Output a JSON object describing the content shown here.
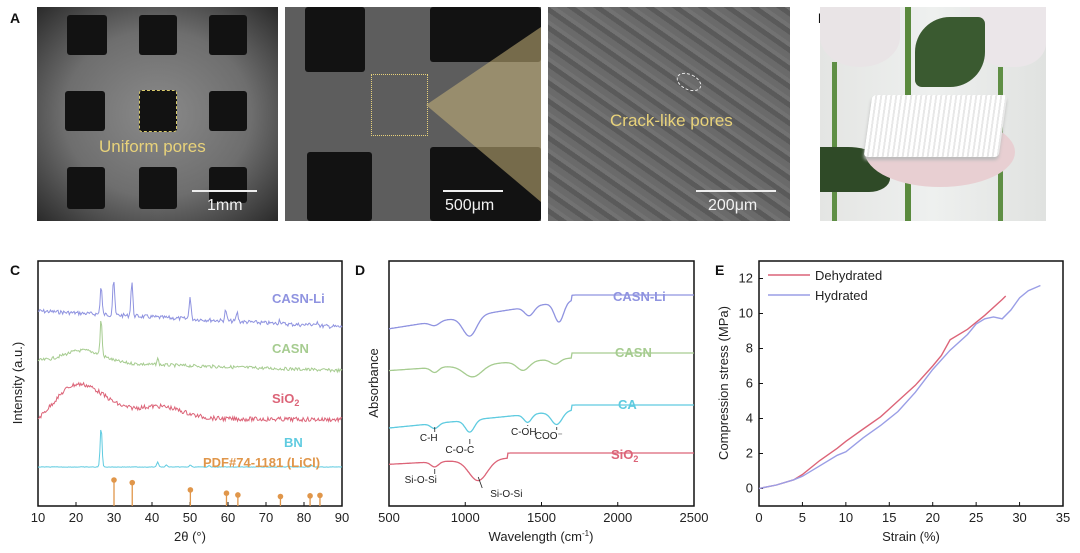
{
  "panels": {
    "a_label": "A",
    "b_label": "B",
    "c_label": "C",
    "d_label": "D",
    "e_label": "E"
  },
  "sem_images": [
    {
      "annotation": "Uniform pores",
      "scale": "1mm"
    },
    {
      "annotation": "",
      "scale": "500μm"
    },
    {
      "annotation": "Crack-like pores",
      "scale": "200μm"
    }
  ],
  "photo": {
    "description": "3D-printed white lattice scaffold resting on a pink flower"
  },
  "colors": {
    "blue": "#8f93e0",
    "green": "#a6cc90",
    "red": "#dc6478",
    "cyan": "#5fcbe0",
    "orange": "#e0964a"
  },
  "chart_data": [
    {
      "type": "line",
      "title": "",
      "xlabel": "2θ (°)",
      "ylabel": "Intensity (a.u.)",
      "xlim": [
        10,
        90
      ],
      "xticks": [
        "10",
        "20",
        "30",
        "40",
        "50",
        "60",
        "70",
        "80",
        "90"
      ],
      "series": [
        {
          "name": "CASN-Li",
          "peaks": [
            26.6,
            29.9,
            34.7,
            50.0,
            59.4,
            62.4,
            73.6,
            81.3,
            83.5
          ]
        },
        {
          "name": "CASN",
          "peaks": [
            26.6,
            41.5
          ]
        },
        {
          "name": "SiO2",
          "broad_humps": [
            21,
            42
          ]
        },
        {
          "name": "BN",
          "peaks": [
            26.6,
            41.5,
            43.8,
            50.1,
            55.0,
            75.9,
            82.0
          ]
        }
      ],
      "reference": {
        "name": "PDF#74-1181 (LiCl)",
        "x": [
          30.0,
          34.8,
          50.1,
          59.6,
          62.6,
          73.8,
          81.6,
          84.2
        ],
        "rel_intensity": [
          100,
          88,
          55,
          40,
          32,
          25,
          28,
          30
        ]
      }
    },
    {
      "type": "line",
      "title": "",
      "xlabel": "Wavelength (cm⁻¹)",
      "ylabel": "Absorbance",
      "xlim": [
        500,
        2500
      ],
      "xticks": [
        "500",
        "1000",
        "1500",
        "2000",
        "2500"
      ],
      "series": [
        {
          "name": "CASN-Li",
          "dips": [
            800,
            1030,
            1420,
            1615
          ]
        },
        {
          "name": "CASN",
          "dips": [
            800,
            1050,
            1380,
            1590
          ]
        },
        {
          "name": "CA",
          "dips": [
            800,
            1030,
            1410,
            1600
          ]
        },
        {
          "name": "SiO2",
          "dips": [
            800,
            1085
          ]
        }
      ],
      "annotations": [
        "C-H",
        "C-O-C",
        "C-OH",
        "COO⁻",
        "Si-O-Si",
        "Si-O-Si"
      ]
    },
    {
      "type": "line",
      "title": "",
      "xlabel": "Strain (%)",
      "ylabel": "Compression stress (MPa)",
      "xlim": [
        0,
        35
      ],
      "ylim": [
        -1,
        13
      ],
      "xticks": [
        "0",
        "5",
        "10",
        "15",
        "20",
        "25",
        "30",
        "35"
      ],
      "yticks": [
        "0",
        "2",
        "4",
        "6",
        "8",
        "10",
        "12"
      ],
      "legend": "top-left",
      "series": [
        {
          "name": "Dehydrated",
          "x": [
            0,
            2,
            4,
            5,
            7,
            9,
            10,
            12,
            14,
            16,
            18,
            20,
            21,
            22,
            24,
            26,
            28,
            28.4
          ],
          "y": [
            0,
            0.2,
            0.5,
            0.8,
            1.6,
            2.3,
            2.7,
            3.4,
            4.1,
            5.0,
            5.9,
            7.0,
            7.6,
            8.5,
            9.1,
            9.9,
            10.8,
            11.0
          ]
        },
        {
          "name": "Hydrated",
          "x": [
            0,
            2,
            4,
            5,
            7,
            9,
            10,
            12,
            14,
            16,
            18,
            20,
            22,
            24,
            25,
            26,
            27,
            28,
            29,
            30,
            31,
            32.4
          ],
          "y": [
            0,
            0.2,
            0.5,
            0.7,
            1.3,
            1.9,
            2.1,
            2.9,
            3.6,
            4.4,
            5.5,
            6.8,
            7.9,
            8.8,
            9.4,
            9.7,
            9.8,
            9.7,
            10.2,
            10.9,
            11.3,
            11.6
          ]
        }
      ]
    }
  ]
}
